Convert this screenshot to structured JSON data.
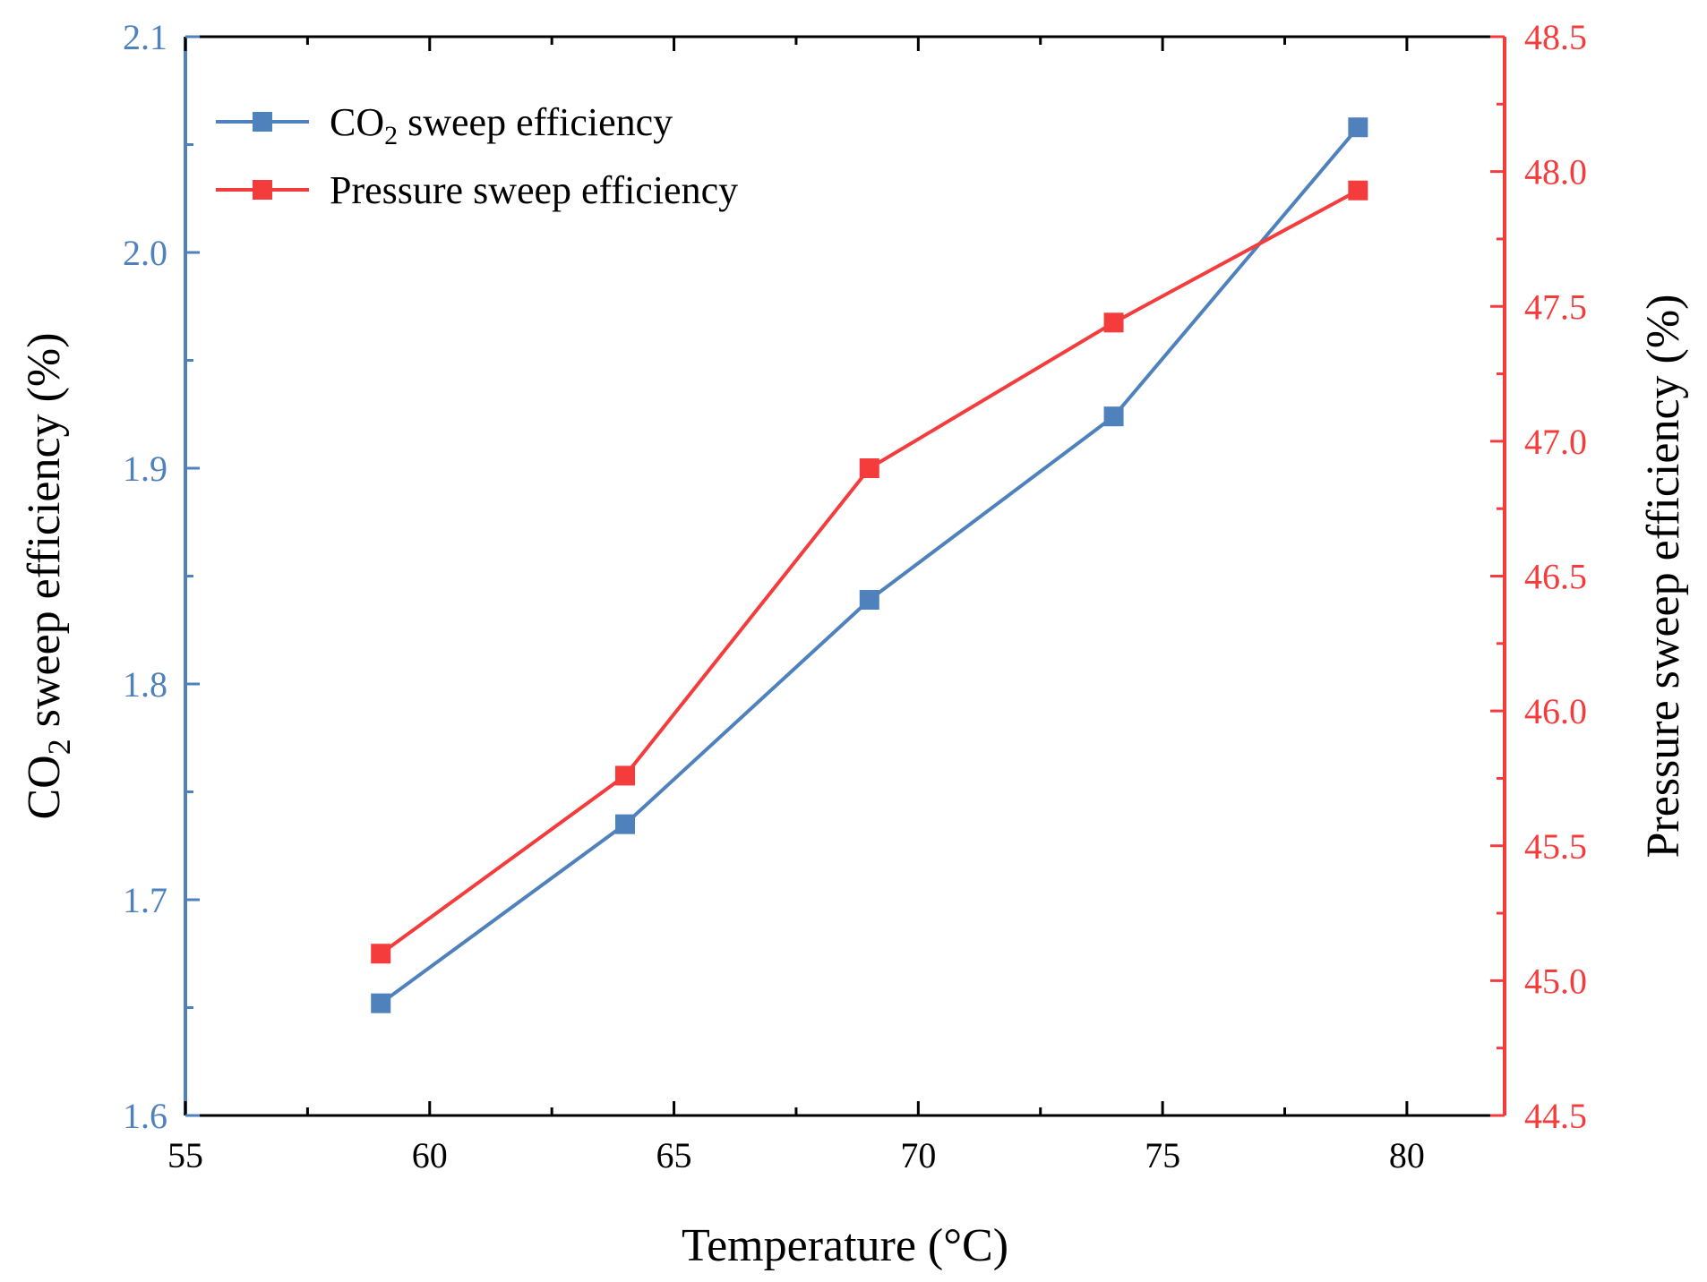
{
  "chart_data": {
    "type": "line",
    "title": "",
    "xlabel": "Temperature (°C)",
    "ylabel_left": {
      "main": "CO",
      "sub": "2",
      "rest": " sweep efficiency (%)"
    },
    "ylabel_right": "Pressure sweep efficiency (%)",
    "xlim": [
      55,
      82
    ],
    "ylim_left": [
      1.6,
      2.1
    ],
    "ylim_right": [
      44.5,
      48.5
    ],
    "x_ticks": [
      55,
      60,
      65,
      70,
      75,
      80
    ],
    "x_tick_labels": [
      "55",
      "60",
      "65",
      "70",
      "75",
      "80"
    ],
    "x_minor_ticks": [
      57.5,
      62.5,
      67.5,
      72.5,
      77.5
    ],
    "y_left_ticks": [
      1.6,
      1.7,
      1.8,
      1.9,
      2.0,
      2.1
    ],
    "y_left_tick_labels": [
      "1.6",
      "1.7",
      "1.8",
      "1.9",
      "2.0",
      "2.1"
    ],
    "y_left_minor_ticks": [
      1.65,
      1.75,
      1.85,
      1.95,
      2.05
    ],
    "y_right_ticks": [
      44.5,
      45.0,
      45.5,
      46.0,
      46.5,
      47.0,
      47.5,
      48.0,
      48.5
    ],
    "y_right_tick_labels": [
      "44.5",
      "45.0",
      "45.5",
      "46.0",
      "46.5",
      "47.0",
      "47.5",
      "48.0",
      "48.5"
    ],
    "y_right_minor_ticks": [
      44.75,
      45.25,
      45.75,
      46.25,
      46.75,
      47.25,
      47.75,
      48.25
    ],
    "grid": false,
    "legend_position": "top-left",
    "series": [
      {
        "name": "CO2 sweep efficiency",
        "legend_label": {
          "main": "CO",
          "sub": "2",
          "rest": " sweep efficiency"
        },
        "axis": "left",
        "color": "#4f81bd",
        "marker": "square",
        "x": [
          59,
          64,
          69,
          74,
          79
        ],
        "values": [
          1.652,
          1.735,
          1.839,
          1.924,
          2.058
        ]
      },
      {
        "name": "Pressure sweep efficiency",
        "legend_label": {
          "main": "Pressure sweep efficiency",
          "sub": "",
          "rest": ""
        },
        "axis": "right",
        "color": "#f53c3c",
        "marker": "square",
        "x": [
          59,
          64,
          69,
          74,
          79
        ],
        "values": [
          45.1,
          45.76,
          46.9,
          47.44,
          47.93
        ]
      }
    ],
    "axis_colors": {
      "left": "#4f81bd",
      "right": "#f53c3c",
      "frame": "#000000",
      "text": "#000000"
    }
  }
}
